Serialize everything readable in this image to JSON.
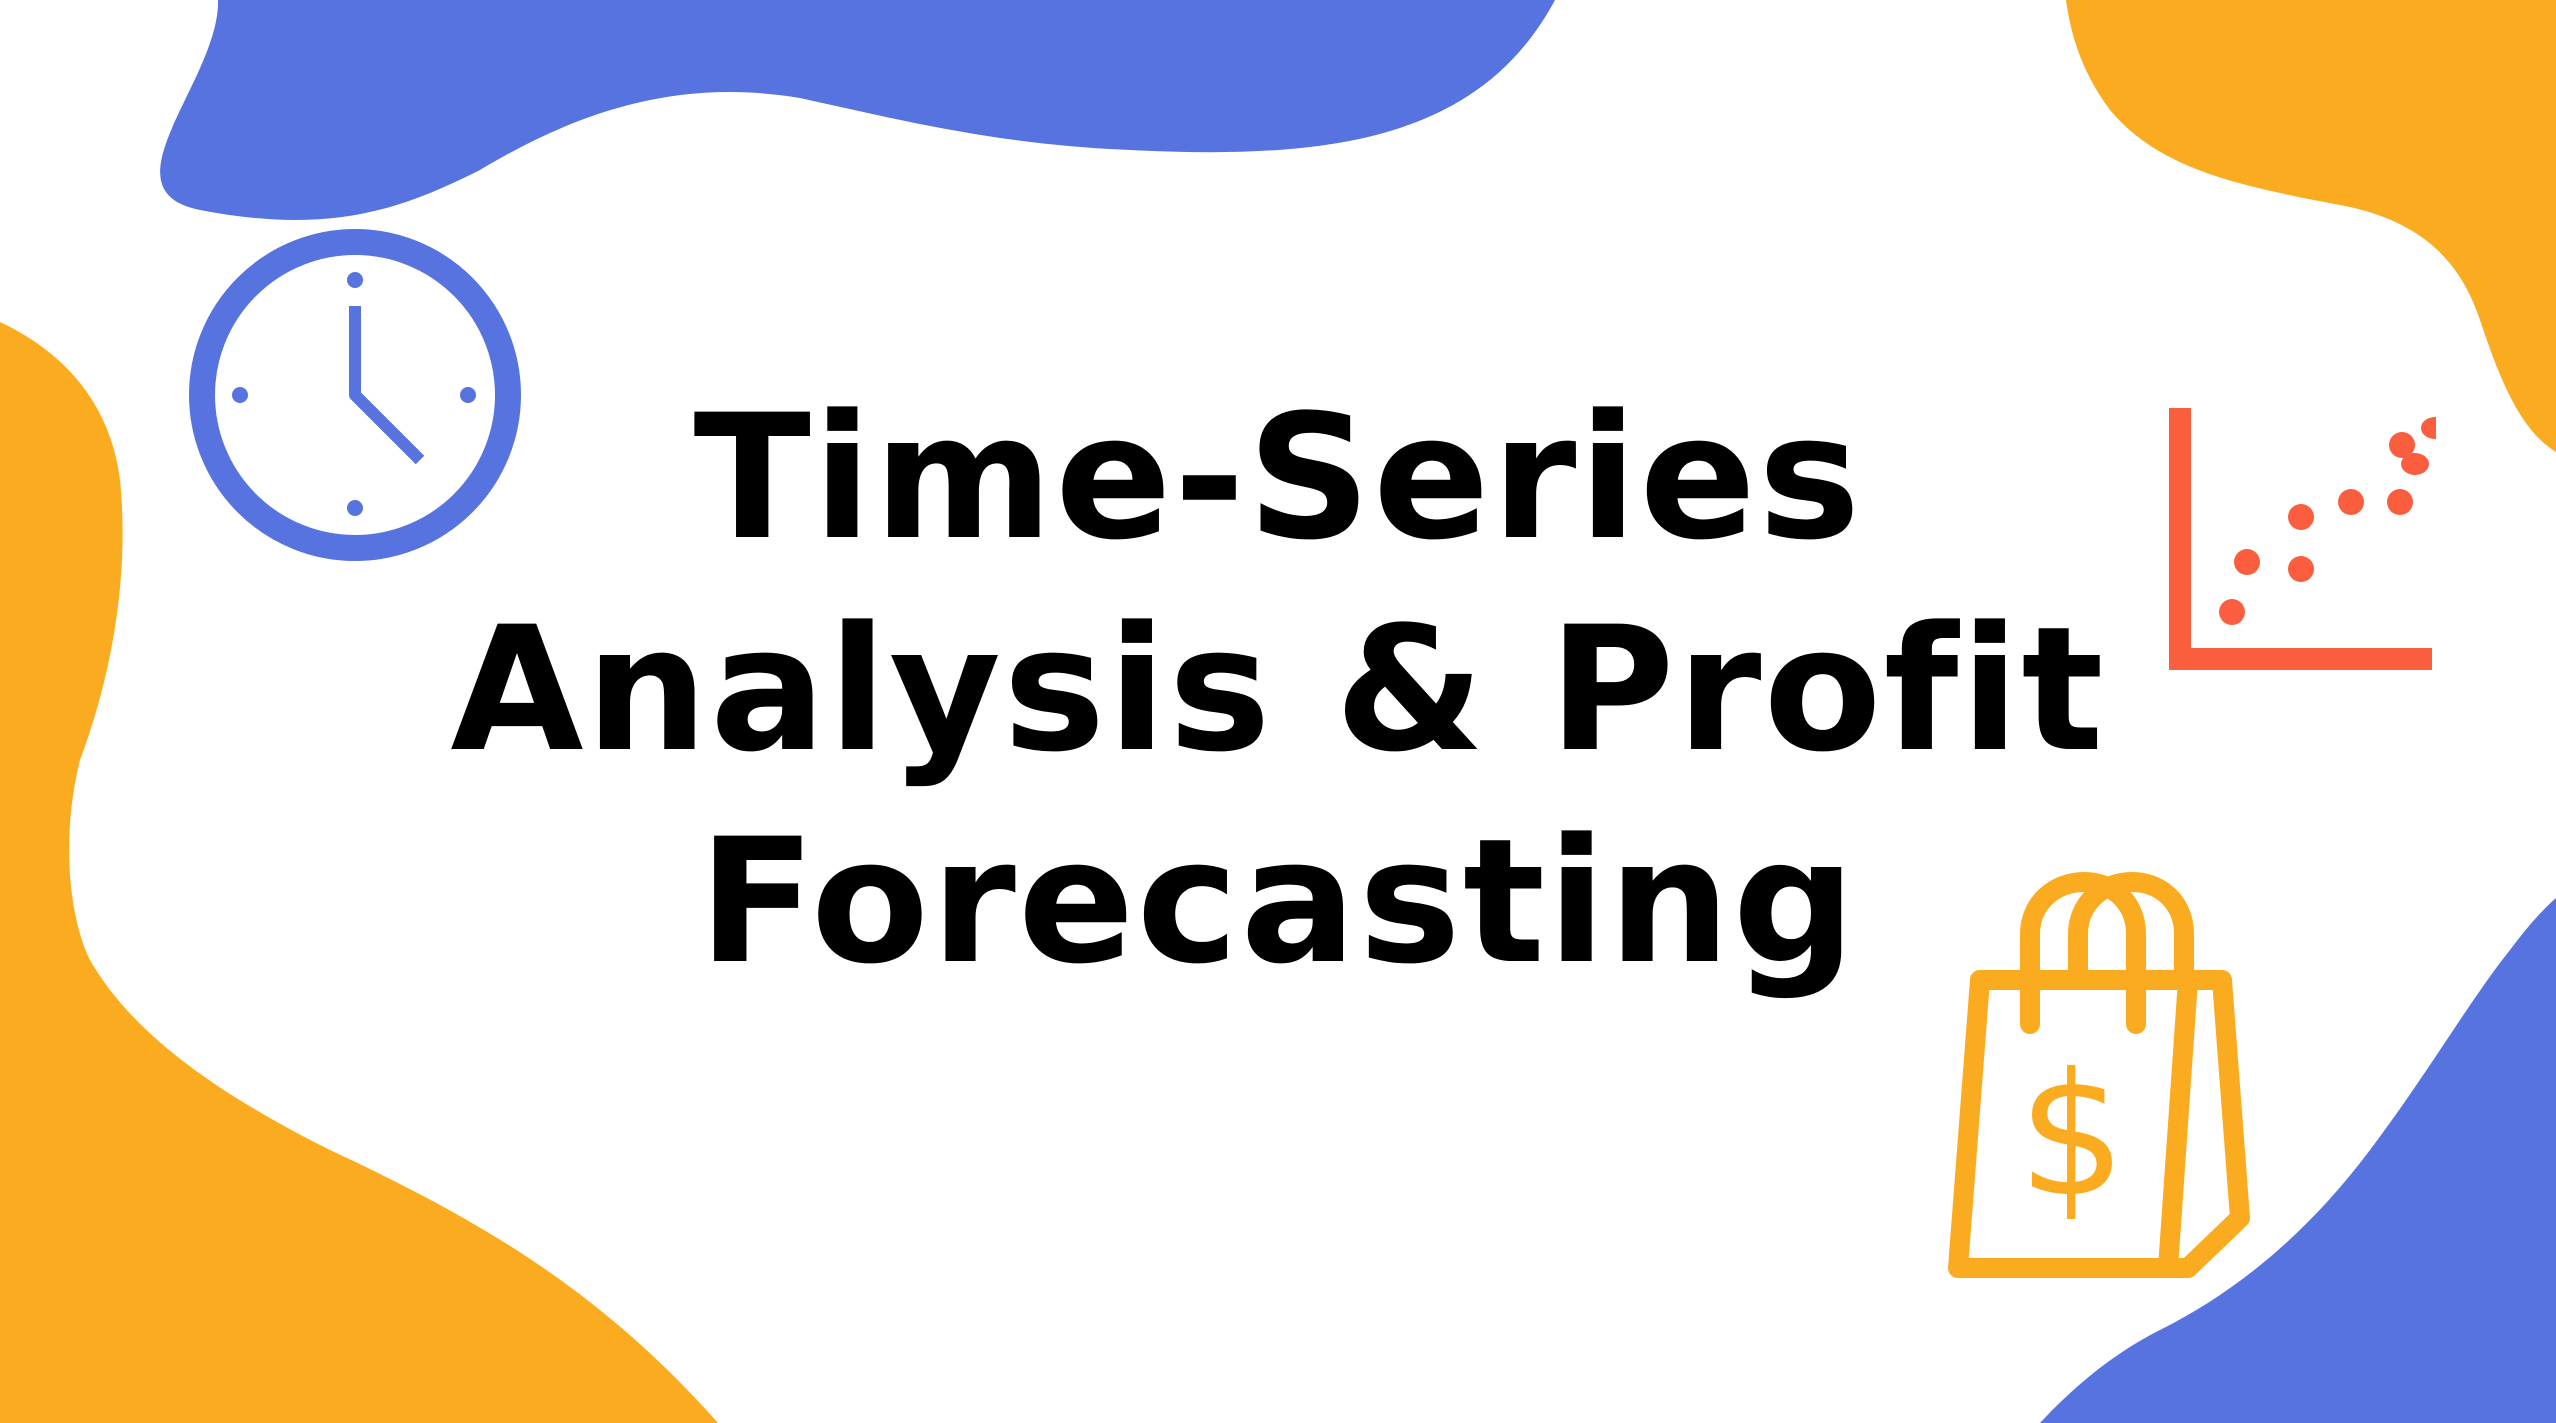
{
  "title": {
    "line1": "Time-Series",
    "line2": "Analysis & Profit",
    "line3": "Forecasting"
  },
  "colors": {
    "background": "#ffffff",
    "blue_accent": "#5773df",
    "orange_accent": "#fbab1f",
    "red_accent": "#fa5e3e",
    "title_text": "#000000"
  },
  "icons": {
    "clock": "clock-icon",
    "scatter_chart": "scatter-chart-icon",
    "shopping_bag": "shopping-bag-dollar-icon"
  }
}
